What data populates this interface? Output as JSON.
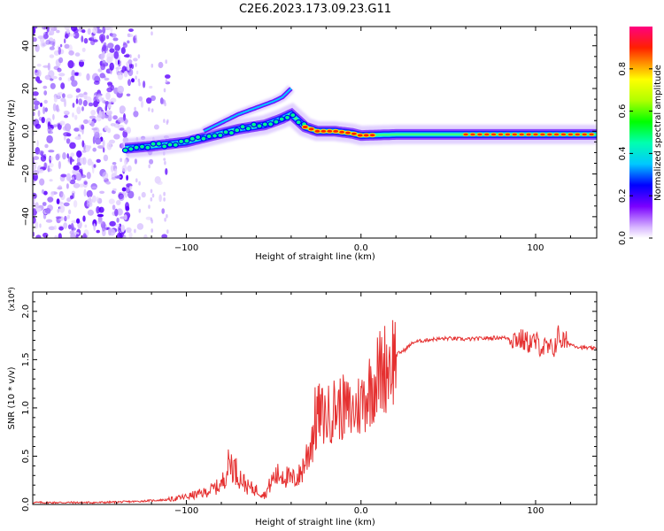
{
  "title": "C2E6.2023.173.09.23.G11",
  "chart_data": [
    {
      "type": "heatmap",
      "xlabel": "Height of straight line (km)",
      "ylabel": "Frequency (Hz)",
      "xlim": [
        -188,
        135
      ],
      "ylim": [
        -50,
        49
      ],
      "xticks": [
        -100,
        0,
        100
      ],
      "yticks": [
        -40,
        -20,
        0,
        20,
        40
      ],
      "colorbar": {
        "label": "Normalized spectral amplitude",
        "range": [
          0,
          1
        ],
        "ticks": [
          0.0,
          0.2,
          0.4,
          0.6,
          0.8
        ]
      },
      "ridge": {
        "description": "main Doppler ridge, frequency vs height",
        "x": [
          -135,
          -120,
          -100,
          -85,
          -70,
          -55,
          -45,
          -40,
          -32,
          -25,
          -15,
          -5,
          0,
          20,
          40,
          60,
          80,
          100,
          110,
          120,
          135
        ],
        "y": [
          -8,
          -7,
          -5,
          -2,
          1,
          3,
          6,
          8,
          2,
          0,
          0,
          -1,
          -2,
          -1.5,
          -1.5,
          -1.5,
          -1.5,
          -1.5,
          -1.5,
          -1.5,
          -1.5
        ]
      },
      "branch": {
        "description": "upper branch of the ridge",
        "x": [
          -90,
          -80,
          -70,
          -60,
          -50,
          -45,
          -40
        ],
        "y": [
          0,
          4,
          8,
          11,
          14,
          16,
          20
        ]
      },
      "noise_region": {
        "x_range": [
          -188,
          -110
        ],
        "y_range": [
          -50,
          49
        ]
      }
    },
    {
      "type": "line",
      "xlabel": "Height of straight line (km)",
      "ylabel": "SNR (10 * v/v)",
      "exponent_label": "(x10⁴)",
      "xlim": [
        -188,
        135
      ],
      "ylim": [
        0,
        2.2
      ],
      "xticks": [
        -100,
        0,
        100
      ],
      "yticks": [
        0.0,
        0.5,
        1.0,
        1.5,
        2.0
      ],
      "series": [
        {
          "name": "SNR",
          "color": "#e53030",
          "x": [
            -188,
            -170,
            -150,
            -130,
            -110,
            -100,
            -90,
            -80,
            -75,
            -70,
            -65,
            -60,
            -55,
            -50,
            -45,
            -40,
            -35,
            -30,
            -25,
            -20,
            -15,
            -10,
            -5,
            0,
            5,
            10,
            15,
            20,
            25,
            30,
            40,
            50,
            60,
            70,
            80,
            85,
            90,
            95,
            100,
            105,
            110,
            113,
            115,
            120,
            125,
            130,
            135
          ],
          "y": [
            0.02,
            0.02,
            0.02,
            0.03,
            0.05,
            0.08,
            0.12,
            0.2,
            0.45,
            0.3,
            0.18,
            0.15,
            0.1,
            0.28,
            0.32,
            0.25,
            0.3,
            0.55,
            0.95,
            0.9,
            1.0,
            1.0,
            0.95,
            1.05,
            1.2,
            1.35,
            1.45,
            1.55,
            1.6,
            1.68,
            1.71,
            1.72,
            1.71,
            1.72,
            1.73,
            1.72,
            1.72,
            1.68,
            1.68,
            1.62,
            1.6,
            1.75,
            1.7,
            1.66,
            1.63,
            1.62,
            1.61
          ]
        }
      ]
    }
  ]
}
